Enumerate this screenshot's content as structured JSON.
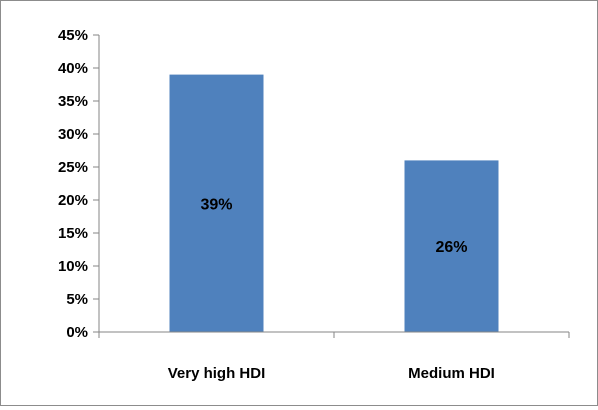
{
  "chart_data": {
    "type": "bar",
    "categories": [
      "Very high HDI",
      "Medium HDI"
    ],
    "values": [
      0.39,
      0.26
    ],
    "data_labels": [
      "39%",
      "26%"
    ],
    "title": "",
    "xlabel": "",
    "ylabel": "",
    "ylim": [
      0,
      0.45
    ],
    "yticks": [
      0,
      0.05,
      0.1,
      0.15,
      0.2,
      0.25,
      0.3,
      0.35,
      0.4,
      0.45
    ],
    "ytick_labels": [
      "0%",
      "5%",
      "10%",
      "15%",
      "20%",
      "25%",
      "30%",
      "35%",
      "40%",
      "45%"
    ],
    "grid": false,
    "legend": "none",
    "bar_color": "#4f81bd",
    "axis_color": "#868686"
  }
}
